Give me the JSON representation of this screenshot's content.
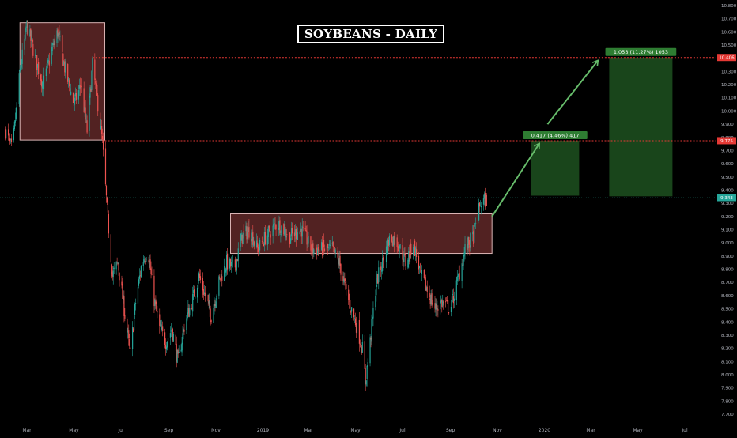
{
  "chart_data": {
    "type": "candlestick",
    "title": "SOYBEANS - DAILY",
    "colors": {
      "up": "#26a69a",
      "down": "#ef5350",
      "background": "#000000",
      "target": "#2e7d32",
      "zone": "#6d2e2e",
      "level": "#e53935",
      "arrow": "#66bb6a"
    },
    "ylim": [
      7.7,
      10.8
    ],
    "y_ticks": [
      "7.700",
      "7.800",
      "7.900",
      "8.000",
      "8.100",
      "8.200",
      "8.300",
      "8.400",
      "8.500",
      "8.600",
      "8.700",
      "8.800",
      "8.900",
      "9.000",
      "9.100",
      "9.200",
      "9.300",
      "9.400",
      "9.500",
      "9.600",
      "9.700",
      "9.800",
      "9.900",
      "10.000",
      "10.100",
      "10.200",
      "10.300",
      "10.400",
      "10.500",
      "10.600",
      "10.700",
      "10.800"
    ],
    "x_ticks": [
      {
        "label": "Mar",
        "date": "2018-03-01"
      },
      {
        "label": "May",
        "date": "2018-05-01"
      },
      {
        "label": "Jul",
        "date": "2018-07-01"
      },
      {
        "label": "Sep",
        "date": "2018-09-01"
      },
      {
        "label": "Nov",
        "date": "2018-11-01"
      },
      {
        "label": "2019",
        "date": "2019-01-01"
      },
      {
        "label": "Mar",
        "date": "2019-03-01"
      },
      {
        "label": "May",
        "date": "2019-05-01"
      },
      {
        "label": "Jul",
        "date": "2019-07-01"
      },
      {
        "label": "Sep",
        "date": "2019-09-01"
      },
      {
        "label": "Nov",
        "date": "2019-11-01"
      },
      {
        "label": "2020",
        "date": "2020-01-01"
      },
      {
        "label": "Mar",
        "date": "2020-03-01"
      },
      {
        "label": "May",
        "date": "2020-05-01"
      },
      {
        "label": "Jul",
        "date": "2020-07-01"
      }
    ],
    "price_path": [
      [
        "2018-02-01",
        9.85
      ],
      [
        "2018-02-10",
        9.7
      ],
      [
        "2018-02-20",
        10.3
      ],
      [
        "2018-03-01",
        10.65
      ],
      [
        "2018-03-12",
        10.4
      ],
      [
        "2018-03-22",
        10.2
      ],
      [
        "2018-04-02",
        10.45
      ],
      [
        "2018-04-10",
        10.6
      ],
      [
        "2018-04-20",
        10.3
      ],
      [
        "2018-05-01",
        10.05
      ],
      [
        "2018-05-10",
        10.2
      ],
      [
        "2018-05-18",
        9.85
      ],
      [
        "2018-05-25",
        10.35
      ],
      [
        "2018-06-01",
        10.05
      ],
      [
        "2018-06-07",
        9.75
      ],
      [
        "2018-06-13",
        9.25
      ],
      [
        "2018-06-20",
        8.75
      ],
      [
        "2018-06-27",
        8.85
      ],
      [
        "2018-07-05",
        8.5
      ],
      [
        "2018-07-13",
        8.15
      ],
      [
        "2018-07-20",
        8.55
      ],
      [
        "2018-07-28",
        8.85
      ],
      [
        "2018-08-05",
        8.95
      ],
      [
        "2018-08-12",
        8.6
      ],
      [
        "2018-08-20",
        8.35
      ],
      [
        "2018-08-28",
        8.25
      ],
      [
        "2018-09-05",
        8.35
      ],
      [
        "2018-09-13",
        8.1
      ],
      [
        "2018-09-22",
        8.4
      ],
      [
        "2018-10-01",
        8.55
      ],
      [
        "2018-10-10",
        8.75
      ],
      [
        "2018-10-18",
        8.6
      ],
      [
        "2018-10-26",
        8.45
      ],
      [
        "2018-11-05",
        8.7
      ],
      [
        "2018-11-15",
        8.85
      ],
      [
        "2018-11-25",
        8.8
      ],
      [
        "2018-12-05",
        9.05
      ],
      [
        "2018-12-15",
        9.1
      ],
      [
        "2018-12-25",
        8.95
      ],
      [
        "2019-01-05",
        9.05
      ],
      [
        "2019-01-20",
        9.15
      ],
      [
        "2019-02-05",
        9.05
      ],
      [
        "2019-02-20",
        9.1
      ],
      [
        "2019-03-05",
        8.95
      ],
      [
        "2019-03-20",
        8.95
      ],
      [
        "2019-04-01",
        8.95
      ],
      [
        "2019-04-10",
        8.85
      ],
      [
        "2019-04-20",
        8.6
      ],
      [
        "2019-05-01",
        8.4
      ],
      [
        "2019-05-10",
        8.2
      ],
      [
        "2019-05-14",
        7.95
      ],
      [
        "2019-05-20",
        8.25
      ],
      [
        "2019-05-28",
        8.7
      ],
      [
        "2019-06-05",
        8.85
      ],
      [
        "2019-06-15",
        9.05
      ],
      [
        "2019-06-25",
        9.0
      ],
      [
        "2019-07-05",
        8.85
      ],
      [
        "2019-07-15",
        9.0
      ],
      [
        "2019-07-25",
        8.75
      ],
      [
        "2019-08-05",
        8.6
      ],
      [
        "2019-08-12",
        8.5
      ],
      [
        "2019-08-20",
        8.55
      ],
      [
        "2019-09-01",
        8.5
      ],
      [
        "2019-09-10",
        8.7
      ],
      [
        "2019-09-20",
        8.95
      ],
      [
        "2019-10-01",
        9.05
      ],
      [
        "2019-10-10",
        9.3
      ],
      [
        "2019-10-18",
        9.33
      ]
    ],
    "candles_end": "2019-10-18",
    "last_price": "9.343",
    "zones": [
      {
        "name": "supply-zone-2018",
        "x0": "2018-02-20",
        "x1": "2018-06-10",
        "y0": 9.78,
        "y1": 10.67
      },
      {
        "name": "consolidation-zone-2019",
        "x0": "2018-11-20",
        "x1": "2019-10-25",
        "y0": 8.92,
        "y1": 9.22
      }
    ],
    "levels": [
      {
        "name": "resistance-1",
        "value": 9.775,
        "label": "9.775",
        "x0": "2018-06-10"
      },
      {
        "name": "resistance-2",
        "value": 10.406,
        "label": "10.406",
        "x0": "2018-05-25"
      }
    ],
    "targets": [
      {
        "name": "target-1",
        "x0": "2019-12-15",
        "x1": "2020-02-15",
        "y0": 9.358,
        "y1": 9.775,
        "label": "0.417 (4.46%) 417"
      },
      {
        "name": "target-2",
        "x0": "2020-03-25",
        "x1": "2020-06-15",
        "y0": 9.353,
        "y1": 10.406,
        "label": "1.053 (11.27%) 1053"
      }
    ],
    "arrows": [
      {
        "name": "arrow-to-target-1",
        "from": [
          "2019-10-25",
          9.2
        ],
        "to": [
          "2019-12-25",
          9.75
        ]
      },
      {
        "name": "arrow-to-target-2",
        "from": [
          "2020-01-05",
          9.9
        ],
        "to": [
          "2020-03-10",
          10.38
        ]
      }
    ]
  }
}
